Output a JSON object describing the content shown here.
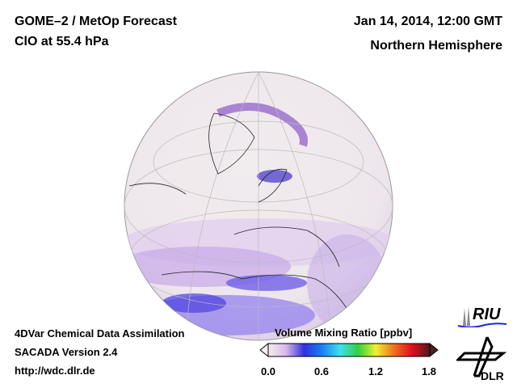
{
  "header": {
    "title": "GOME–2 / MetOp Forecast",
    "subtitle": "ClO at 55.4 hPa",
    "datetime": "Jan 14, 2014, 12:00 GMT",
    "region": "Northern Hemisphere"
  },
  "footer": {
    "line1": "4DVar Chemical Data Assimilation",
    "line2": "SACADA Version 2.4",
    "line3": "http://wdc.dlr.de"
  },
  "colorbar": {
    "title": "Volume Mixing Ratio [ppbv]",
    "ticks": [
      "0.0",
      "0.6",
      "1.2",
      "1.8"
    ],
    "range": [
      0,
      1.8
    ],
    "colors": [
      "#f4eef0",
      "#d8b8e8",
      "#3030e0",
      "#1a80f0",
      "#40e0f0",
      "#30d040",
      "#f0f030",
      "#f07020",
      "#e01020",
      "#501818"
    ]
  },
  "logos": {
    "riu": "RIU",
    "dlr": "DLR"
  }
}
